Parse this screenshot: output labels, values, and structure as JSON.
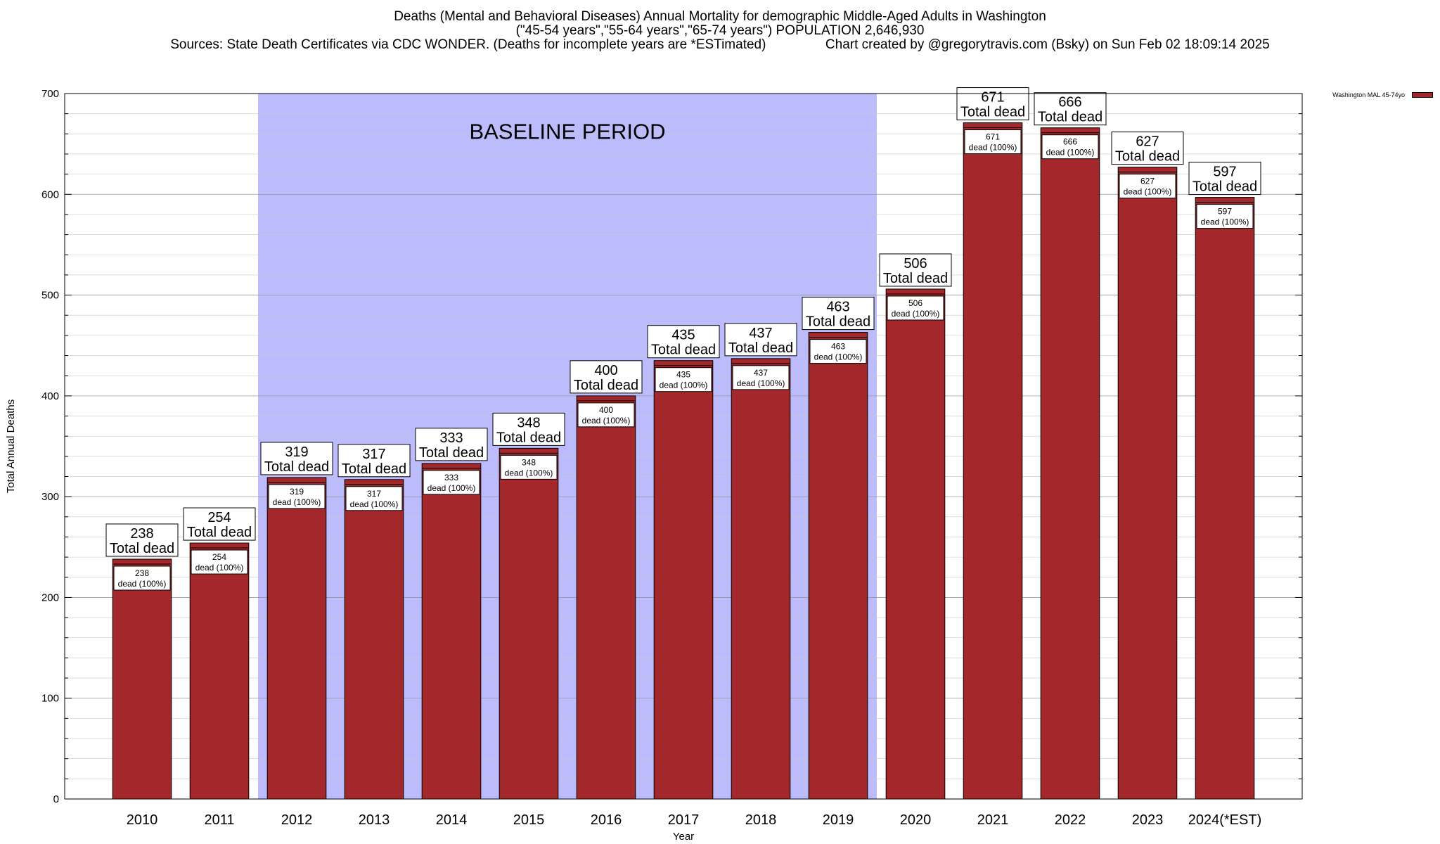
{
  "header": {
    "line1": "Deaths (Mental and Behavioral Diseases) Annual Mortality for demographic Middle-Aged Adults in Washington",
    "line2": "(\"45-54 years\",\"55-64 years\",\"65-74 years\") POPULATION 2,646,930",
    "line3_left": "Sources: State Death Certificates via CDC WONDER. (Deaths for incomplete years are *ESTimated)",
    "line3_right": "Chart created by @gregorytravis.com (Bsky) on Sun Feb 02 18:09:14 2025"
  },
  "legend": {
    "label": "Washington MAL 45-74yo"
  },
  "colors": {
    "bar": "#a4282b",
    "baseline_band": "#bcbcfc",
    "label_box": "#ffffff"
  },
  "chart_data": {
    "type": "bar",
    "categories": [
      "2010",
      "2011",
      "2012",
      "2013",
      "2014",
      "2015",
      "2016",
      "2017",
      "2018",
      "2019",
      "2020",
      "2021",
      "2022",
      "2023",
      "2024(*EST)"
    ],
    "values": [
      238,
      254,
      319,
      317,
      333,
      348,
      400,
      435,
      437,
      463,
      506,
      671,
      666,
      627,
      597
    ],
    "series": [
      {
        "name": "Washington MAL 45-74yo",
        "values": [
          238,
          254,
          319,
          317,
          333,
          348,
          400,
          435,
          437,
          463,
          506,
          671,
          666,
          627,
          597
        ]
      }
    ],
    "bar_label_top": "Total dead",
    "bar_label_inner": "dead (100%)",
    "baseline_band": {
      "label": "BASELINE PERIOD",
      "from": "2012",
      "to": "2019"
    },
    "xlabel": "Year",
    "ylabel": "Total Annual Deaths",
    "ylim": [
      0,
      700
    ],
    "yticks": [
      0,
      100,
      200,
      300,
      400,
      500,
      600,
      700
    ],
    "grid": true,
    "legend_position": "top-right"
  }
}
